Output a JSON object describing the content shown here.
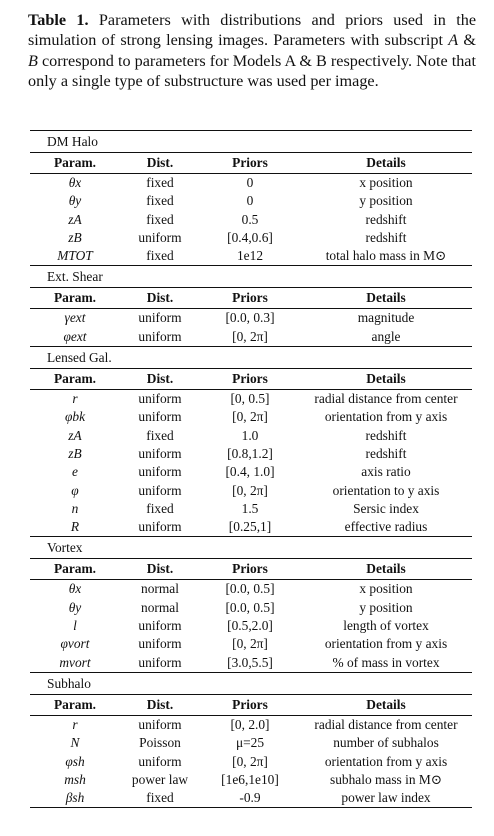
{
  "caption": {
    "label": "Table 1.",
    "text_1": " Parameters with distributions and priors used in the simulation of strong lensing images. Parameters with subscript ",
    "var_a": "A",
    "text_2": " & ",
    "var_b": "B",
    "text_3": " correspond to parameters for Models A & B respectively. Note that only a single type of substructure was used per image."
  },
  "header": {
    "param": "Param.",
    "dist": "Dist.",
    "priors": "Priors",
    "details": "Details"
  },
  "sections": [
    {
      "title": "DM Halo",
      "rows": [
        {
          "param": "θx",
          "dist": "fixed",
          "priors": "0",
          "details": "x position"
        },
        {
          "param": "θy",
          "dist": "fixed",
          "priors": "0",
          "details": "y position"
        },
        {
          "param": "zA",
          "dist": "fixed",
          "priors": "0.5",
          "details": "redshift"
        },
        {
          "param": "zB",
          "dist": "uniform",
          "priors": "[0.4,0.6]",
          "details": "redshift"
        },
        {
          "param": "MTOT",
          "dist": "fixed",
          "priors": "1e12",
          "details": "total halo mass in M⊙"
        }
      ]
    },
    {
      "title": "Ext. Shear",
      "rows": [
        {
          "param": "γext",
          "dist": "uniform",
          "priors": "[0.0, 0.3]",
          "details": "magnitude"
        },
        {
          "param": "φext",
          "dist": "uniform",
          "priors": "[0, 2π]",
          "details": "angle"
        }
      ]
    },
    {
      "title": "Lensed Gal.",
      "rows": [
        {
          "param": "r",
          "dist": "uniform",
          "priors": "[0, 0.5]",
          "details": "radial distance from center"
        },
        {
          "param": "φbk",
          "dist": "uniform",
          "priors": "[0, 2π]",
          "details": "orientation from y axis"
        },
        {
          "param": "zA",
          "dist": "fixed",
          "priors": "1.0",
          "details": "redshift"
        },
        {
          "param": "zB",
          "dist": "uniform",
          "priors": "[0.8,1.2]",
          "details": "redshift"
        },
        {
          "param": "e",
          "dist": "uniform",
          "priors": "[0.4, 1.0]",
          "details": "axis ratio"
        },
        {
          "param": "φ",
          "dist": "uniform",
          "priors": "[0, 2π]",
          "details": "orientation to y axis"
        },
        {
          "param": "n",
          "dist": "fixed",
          "priors": "1.5",
          "details": "Sersic index"
        },
        {
          "param": "R",
          "dist": "uniform",
          "priors": "[0.25,1]",
          "details": "effective radius"
        }
      ]
    },
    {
      "title": "Vortex",
      "rows": [
        {
          "param": "θx",
          "dist": "normal",
          "priors": "[0.0, 0.5]",
          "details": "x position"
        },
        {
          "param": "θy",
          "dist": "normal",
          "priors": "[0.0, 0.5]",
          "details": "y position"
        },
        {
          "param": "l",
          "dist": "uniform",
          "priors": "[0.5,2.0]",
          "details": "length of vortex"
        },
        {
          "param": "φvort",
          "dist": "uniform",
          "priors": "[0, 2π]",
          "details": "orientation from y axis"
        },
        {
          "param": "mvort",
          "dist": "uniform",
          "priors": "[3.0,5.5]",
          "details": "% of mass in vortex"
        }
      ]
    },
    {
      "title": "Subhalo",
      "rows": [
        {
          "param": "r",
          "dist": "uniform",
          "priors": "[0, 2.0]",
          "details": "radial distance from center"
        },
        {
          "param": "N",
          "dist": "Poisson",
          "priors": "μ=25",
          "details": "number of subhalos"
        },
        {
          "param": "φsh",
          "dist": "uniform",
          "priors": "[0, 2π]",
          "details": "orientation from y axis"
        },
        {
          "param": "msh",
          "dist": "power law",
          "priors": "[1e6,1e10]",
          "details": "subhalo mass in M⊙"
        },
        {
          "param": "βsh",
          "dist": "fixed",
          "priors": "-0.9",
          "details": "power law index"
        }
      ]
    }
  ]
}
